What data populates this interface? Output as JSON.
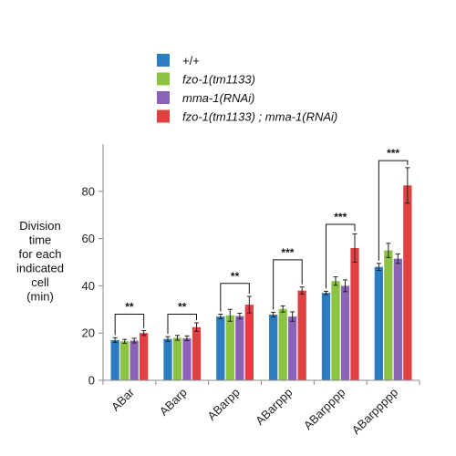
{
  "chart_data": {
    "type": "bar",
    "ylabel": [
      "Division",
      "time",
      "for each",
      "indicated",
      "cell",
      "(min)"
    ],
    "ylim": [
      0,
      100
    ],
    "yticks": [
      0,
      20,
      40,
      60,
      80
    ],
    "grid": false,
    "legend_placement": "top",
    "categories": [
      "ABar",
      "ABarp",
      "ABarpp",
      "ABarppp",
      "ABarpppp",
      "ABarppppp"
    ],
    "series": [
      {
        "name": "+/+",
        "italic": false,
        "color": "#2b7cc1",
        "values": [
          17.0,
          17.5,
          27.0,
          27.8,
          37.0,
          48.0
        ],
        "errors": [
          1.0,
          1.0,
          1.0,
          1.0,
          0.7,
          1.5
        ]
      },
      {
        "name": "fzo-1(tm1133)",
        "italic": true,
        "color": "#8cc342",
        "values": [
          16.5,
          18.0,
          27.5,
          30.2,
          42.0,
          55.0
        ],
        "errors": [
          0.8,
          1.0,
          2.5,
          1.3,
          1.8,
          3.0
        ]
      },
      {
        "name": "mma-1(RNAi)",
        "italic": true,
        "color": "#8a63b8",
        "values": [
          16.8,
          17.8,
          27.2,
          27.0,
          40.0,
          51.5
        ],
        "errors": [
          1.0,
          1.0,
          1.2,
          2.0,
          2.5,
          2.0
        ]
      },
      {
        "name": "fzo-1(tm1133) ; mma-1(RNAi)",
        "italic": true,
        "color": "#e0403f",
        "values": [
          20.0,
          22.5,
          32.0,
          38.0,
          56.0,
          82.5
        ],
        "errors": [
          1.0,
          1.8,
          3.5,
          1.5,
          6.0,
          7.5
        ]
      }
    ],
    "significance": [
      {
        "category_index": 0,
        "label": "**",
        "bracket_y": 28
      },
      {
        "category_index": 1,
        "label": "**",
        "bracket_y": 28
      },
      {
        "category_index": 2,
        "label": "**",
        "bracket_y": 41
      },
      {
        "category_index": 3,
        "label": "***",
        "bracket_y": 51
      },
      {
        "category_index": 4,
        "label": "***",
        "bracket_y": 66
      },
      {
        "category_index": 5,
        "label": "***",
        "bracket_y": 93
      }
    ]
  }
}
